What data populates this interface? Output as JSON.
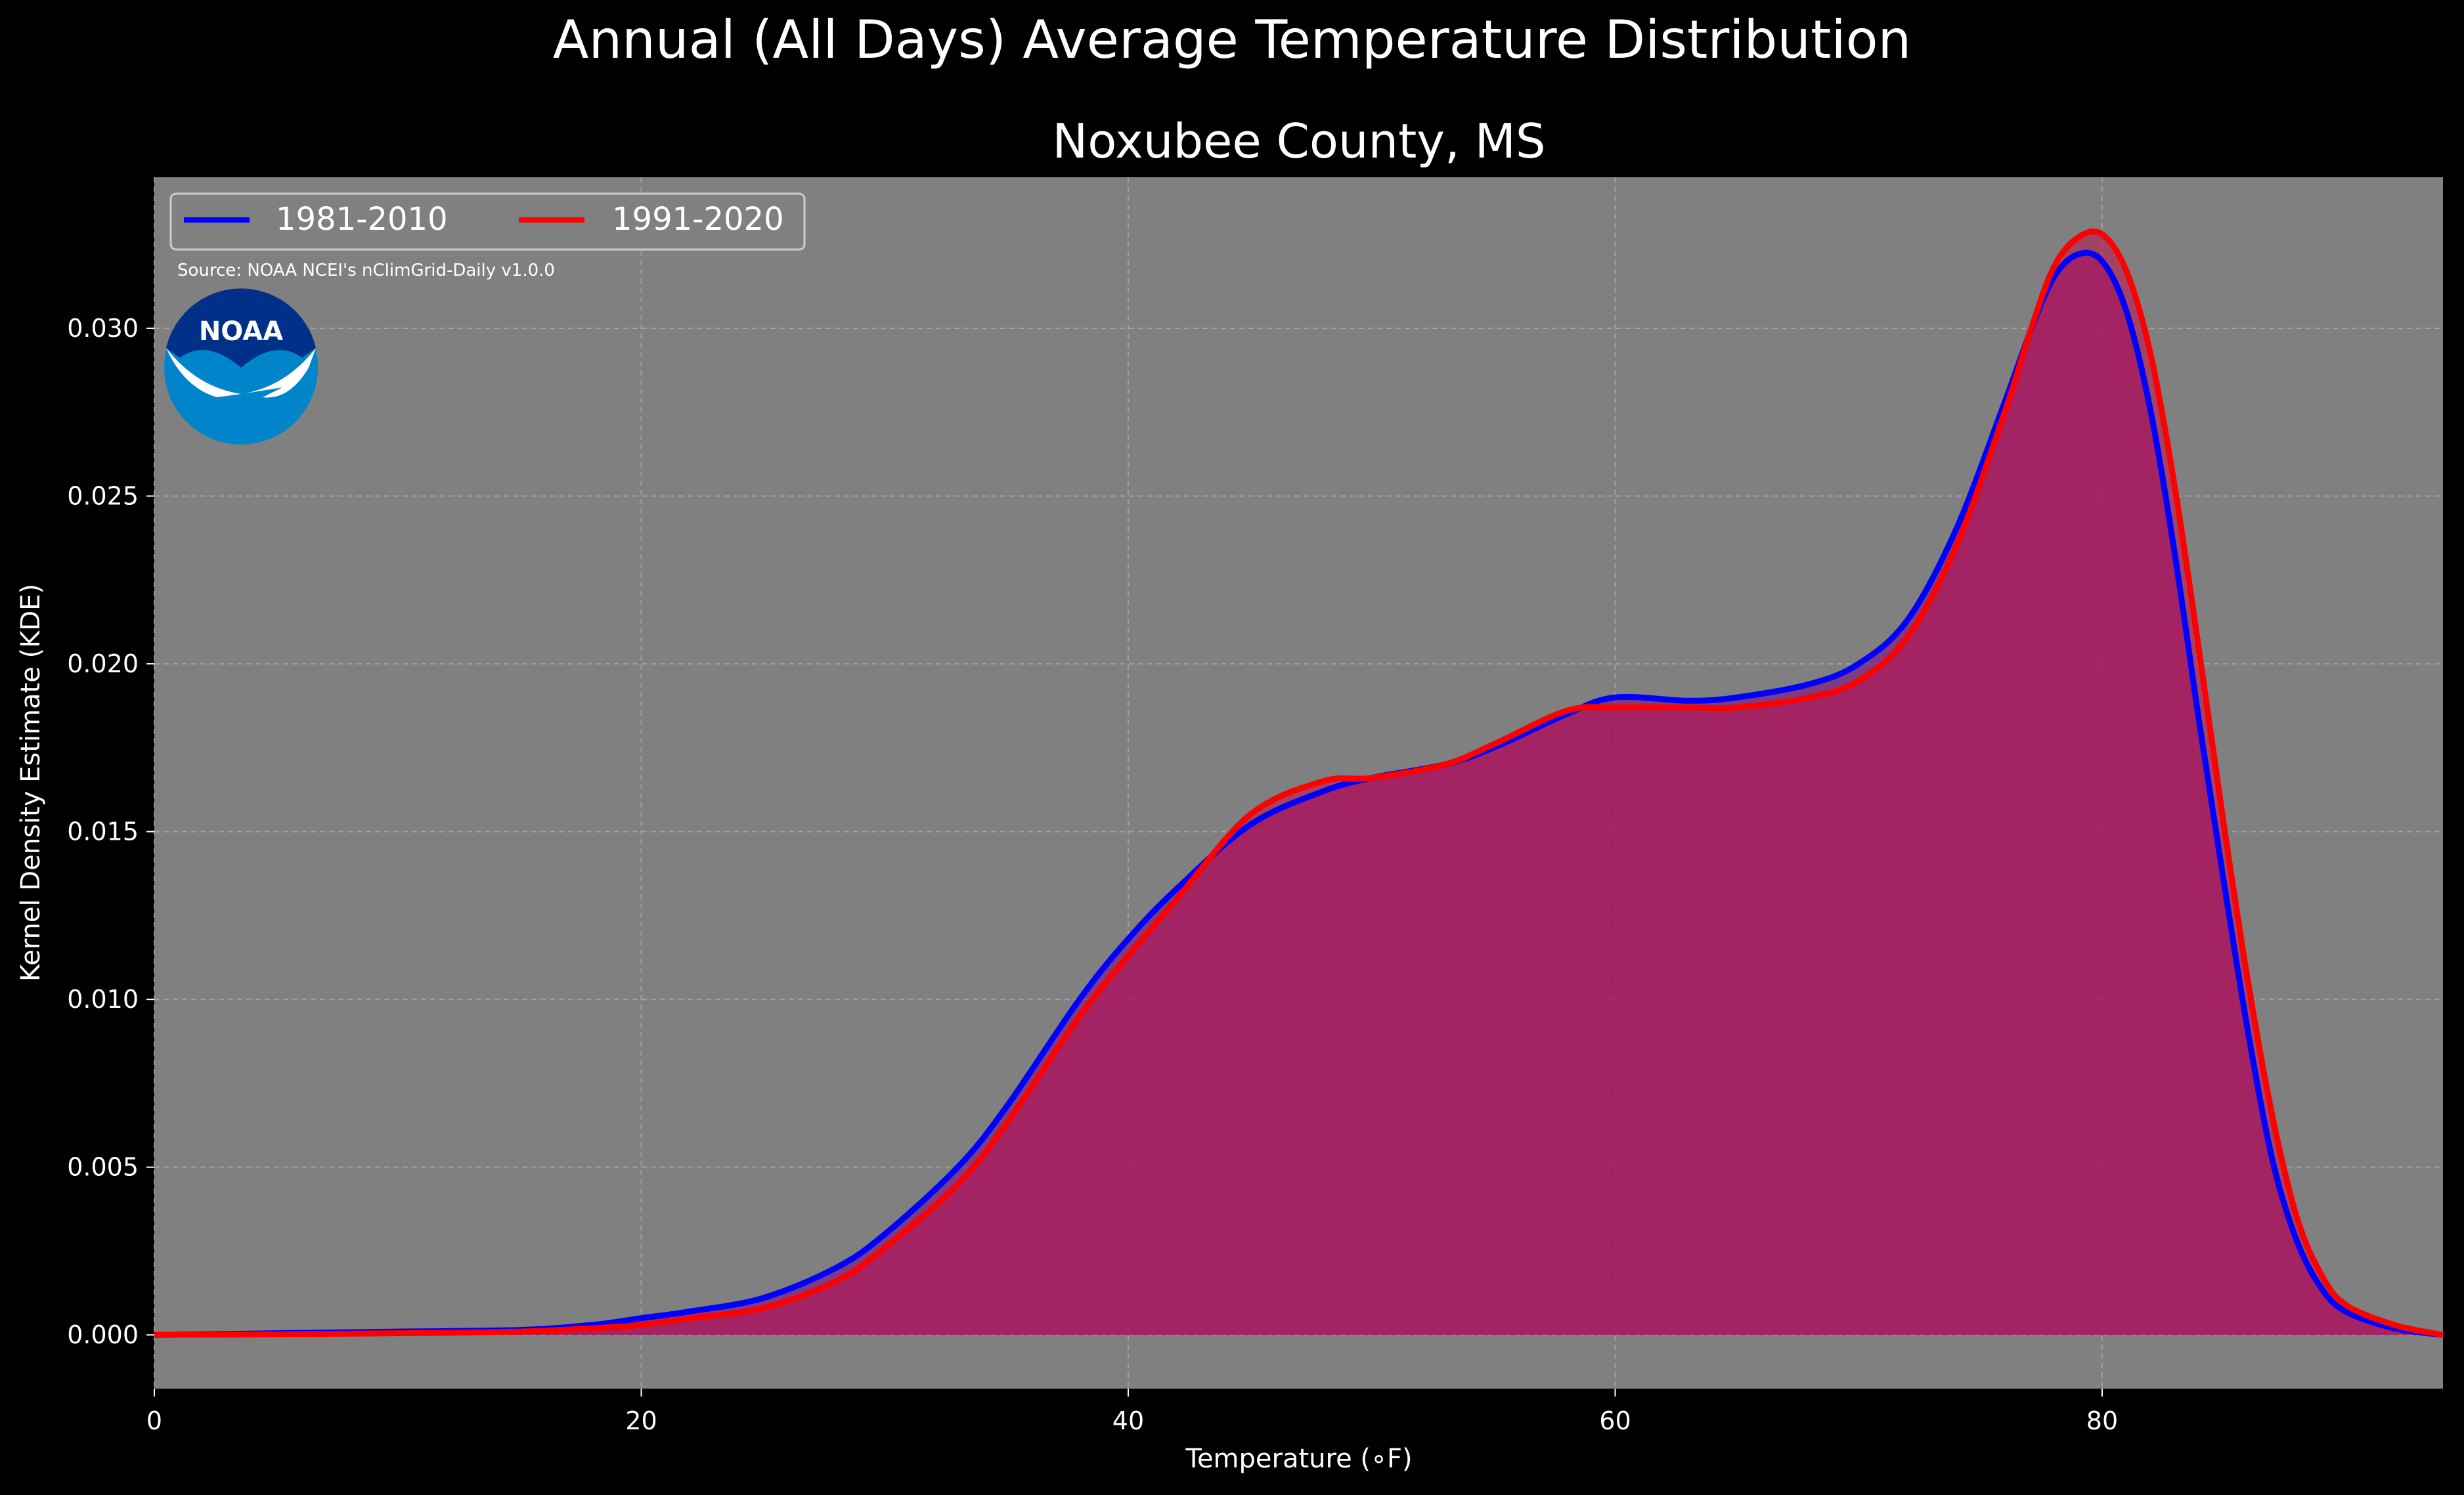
{
  "chart_data": {
    "type": "area",
    "title": "Annual (All Days) Average Temperature Distribution",
    "subtitle": "Noxubee County, MS",
    "xlabel": "Temperature (∘F)",
    "ylabel": "Kernel Density Estimate (KDE)",
    "xlim": [
      0,
      94
    ],
    "ylim": [
      -0.0016,
      0.0345
    ],
    "x_ticks": [
      0,
      20,
      40,
      60,
      80
    ],
    "y_ticks": [
      0.0,
      0.005,
      0.01,
      0.015,
      0.02,
      0.025,
      0.03
    ],
    "y_tick_labels": [
      "0.000",
      "0.005",
      "0.010",
      "0.015",
      "0.020",
      "0.025",
      "0.030"
    ],
    "grid": true,
    "legend_position": "top-left",
    "source_note": "Source: NOAA NCEI's nClimGrid-Daily v1.0.0",
    "logo_text": "NOAA",
    "background_color": "#000000",
    "plot_background_color": "#808080",
    "series": [
      {
        "name": "1981-2010",
        "color": "#0000ff",
        "x": [
          0,
          5,
          10,
          15,
          18,
          20,
          22,
          25,
          28,
          30,
          33,
          35,
          38,
          40,
          42,
          45,
          48,
          50,
          53,
          55,
          58,
          60,
          63,
          65,
          68,
          70,
          72,
          74,
          76,
          77,
          78,
          79,
          80,
          81,
          82,
          83,
          84,
          85,
          86,
          87,
          88,
          89,
          90,
          92,
          94
        ],
        "y": [
          0.0,
          5e-05,
          0.0001,
          0.00015,
          0.0003,
          0.0005,
          0.0007,
          0.0011,
          0.002,
          0.003,
          0.005,
          0.0068,
          0.01,
          0.0118,
          0.0133,
          0.0152,
          0.0162,
          0.0166,
          0.017,
          0.0175,
          0.0185,
          0.019,
          0.0189,
          0.019,
          0.0194,
          0.02,
          0.0213,
          0.024,
          0.0278,
          0.0298,
          0.0315,
          0.0322,
          0.032,
          0.0305,
          0.0275,
          0.0232,
          0.0182,
          0.0135,
          0.009,
          0.0052,
          0.0028,
          0.0014,
          0.0007,
          0.0002,
          0.0
        ],
        "fill_color": "#800080"
      },
      {
        "name": "1991-2020",
        "color": "#ff0000",
        "x": [
          0,
          5,
          10,
          15,
          18,
          20,
          22,
          25,
          28,
          30,
          33,
          35,
          38,
          40,
          42,
          45,
          48,
          50,
          53,
          55,
          58,
          60,
          63,
          65,
          68,
          70,
          72,
          74,
          76,
          77,
          78,
          79,
          80,
          81,
          82,
          83,
          84,
          85,
          86,
          87,
          88,
          89,
          90,
          92,
          94
        ],
        "y": [
          0.0,
          2e-05,
          5e-05,
          0.0001,
          0.0002,
          0.0003,
          0.0005,
          0.0008,
          0.0016,
          0.0026,
          0.0045,
          0.0063,
          0.0095,
          0.0113,
          0.013,
          0.0155,
          0.0165,
          0.0166,
          0.017,
          0.0176,
          0.0186,
          0.0187,
          0.0187,
          0.0187,
          0.019,
          0.0195,
          0.0208,
          0.0235,
          0.0275,
          0.0298,
          0.0318,
          0.0327,
          0.0328,
          0.0317,
          0.0292,
          0.0252,
          0.0203,
          0.0152,
          0.0105,
          0.0065,
          0.0035,
          0.0018,
          0.0009,
          0.0003,
          0.0
        ],
        "fill_color": "#c0104a"
      }
    ]
  }
}
